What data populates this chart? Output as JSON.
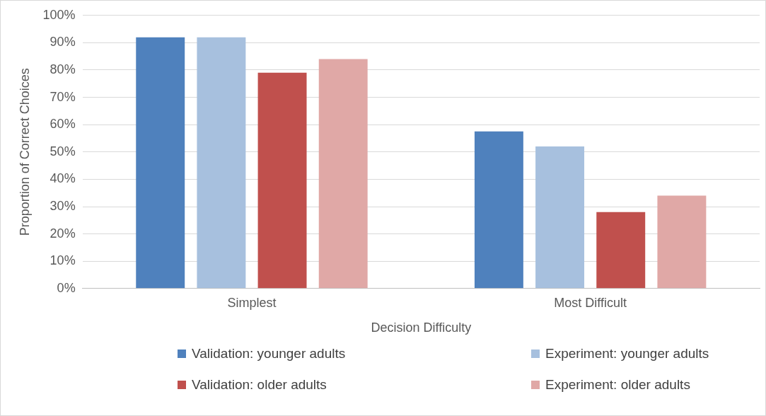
{
  "chart_data": {
    "type": "bar",
    "xlabel": "Decision Difficulty",
    "ylabel": "Proportion of Correct Choices",
    "categories": [
      "Simplest",
      "Most Difficult"
    ],
    "series": [
      {
        "name": "Validation: younger adults",
        "color": "#4f81bd",
        "values": [
          92,
          57.5
        ]
      },
      {
        "name": "Experiment: younger adults",
        "color": "#a7c0de",
        "values": [
          92,
          52
        ]
      },
      {
        "name": "Validation: older adults",
        "color": "#c0504d",
        "values": [
          79,
          28
        ]
      },
      {
        "name": "Experiment: older adults",
        "color": "#e0a8a6",
        "values": [
          84,
          34
        ]
      }
    ],
    "ylim": [
      0,
      100
    ],
    "yticks": [
      {
        "value": 0,
        "label": "0%"
      },
      {
        "value": 10,
        "label": "10%"
      },
      {
        "value": 20,
        "label": "20%"
      },
      {
        "value": 30,
        "label": "30%"
      },
      {
        "value": 40,
        "label": "40%"
      },
      {
        "value": 50,
        "label": "50%"
      },
      {
        "value": 60,
        "label": "60%"
      },
      {
        "value": 70,
        "label": "70%"
      },
      {
        "value": 80,
        "label": "80%"
      },
      {
        "value": 90,
        "label": "90%"
      },
      {
        "value": 100,
        "label": "100%"
      }
    ],
    "grid": "y",
    "legend": "bottom"
  }
}
